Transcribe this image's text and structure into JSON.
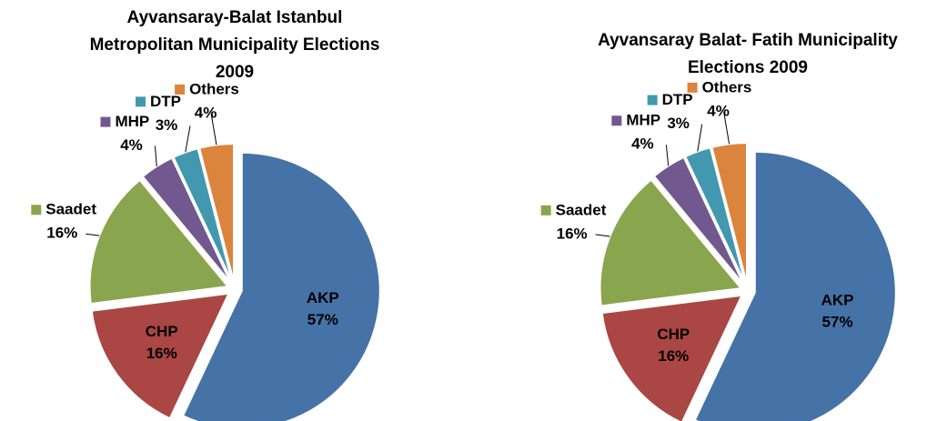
{
  "chart_data": [
    {
      "type": "pie",
      "title": [
        "Ayvansaray-Balat Istanbul",
        "Metropolitan Municipality Elections",
        "2009"
      ],
      "categories": [
        "AKP",
        "CHP",
        "Saadet",
        "MHP",
        "DTP",
        "Others"
      ],
      "values": [
        57,
        16,
        16,
        4,
        3,
        4
      ],
      "value_labels": [
        "57%",
        "16%",
        "16%",
        "4%",
        "3%",
        "4%"
      ],
      "colors": [
        "#4572a7",
        "#aa4643",
        "#89a54e",
        "#71588f",
        "#4198af",
        "#db843d"
      ]
    },
    {
      "type": "pie",
      "title": [
        "Ayvansaray Balat- Fatih Municipality",
        "Elections 2009"
      ],
      "categories": [
        "AKP",
        "CHP",
        "Saadet",
        "MHP",
        "DTP",
        "Others"
      ],
      "values": [
        57,
        16,
        16,
        4,
        3,
        4
      ],
      "value_labels": [
        "57%",
        "16%",
        "16%",
        "4%",
        "3%",
        "4%"
      ],
      "colors": [
        "#4572a7",
        "#aa4643",
        "#89a54e",
        "#71588f",
        "#4198af",
        "#db843d"
      ]
    }
  ]
}
